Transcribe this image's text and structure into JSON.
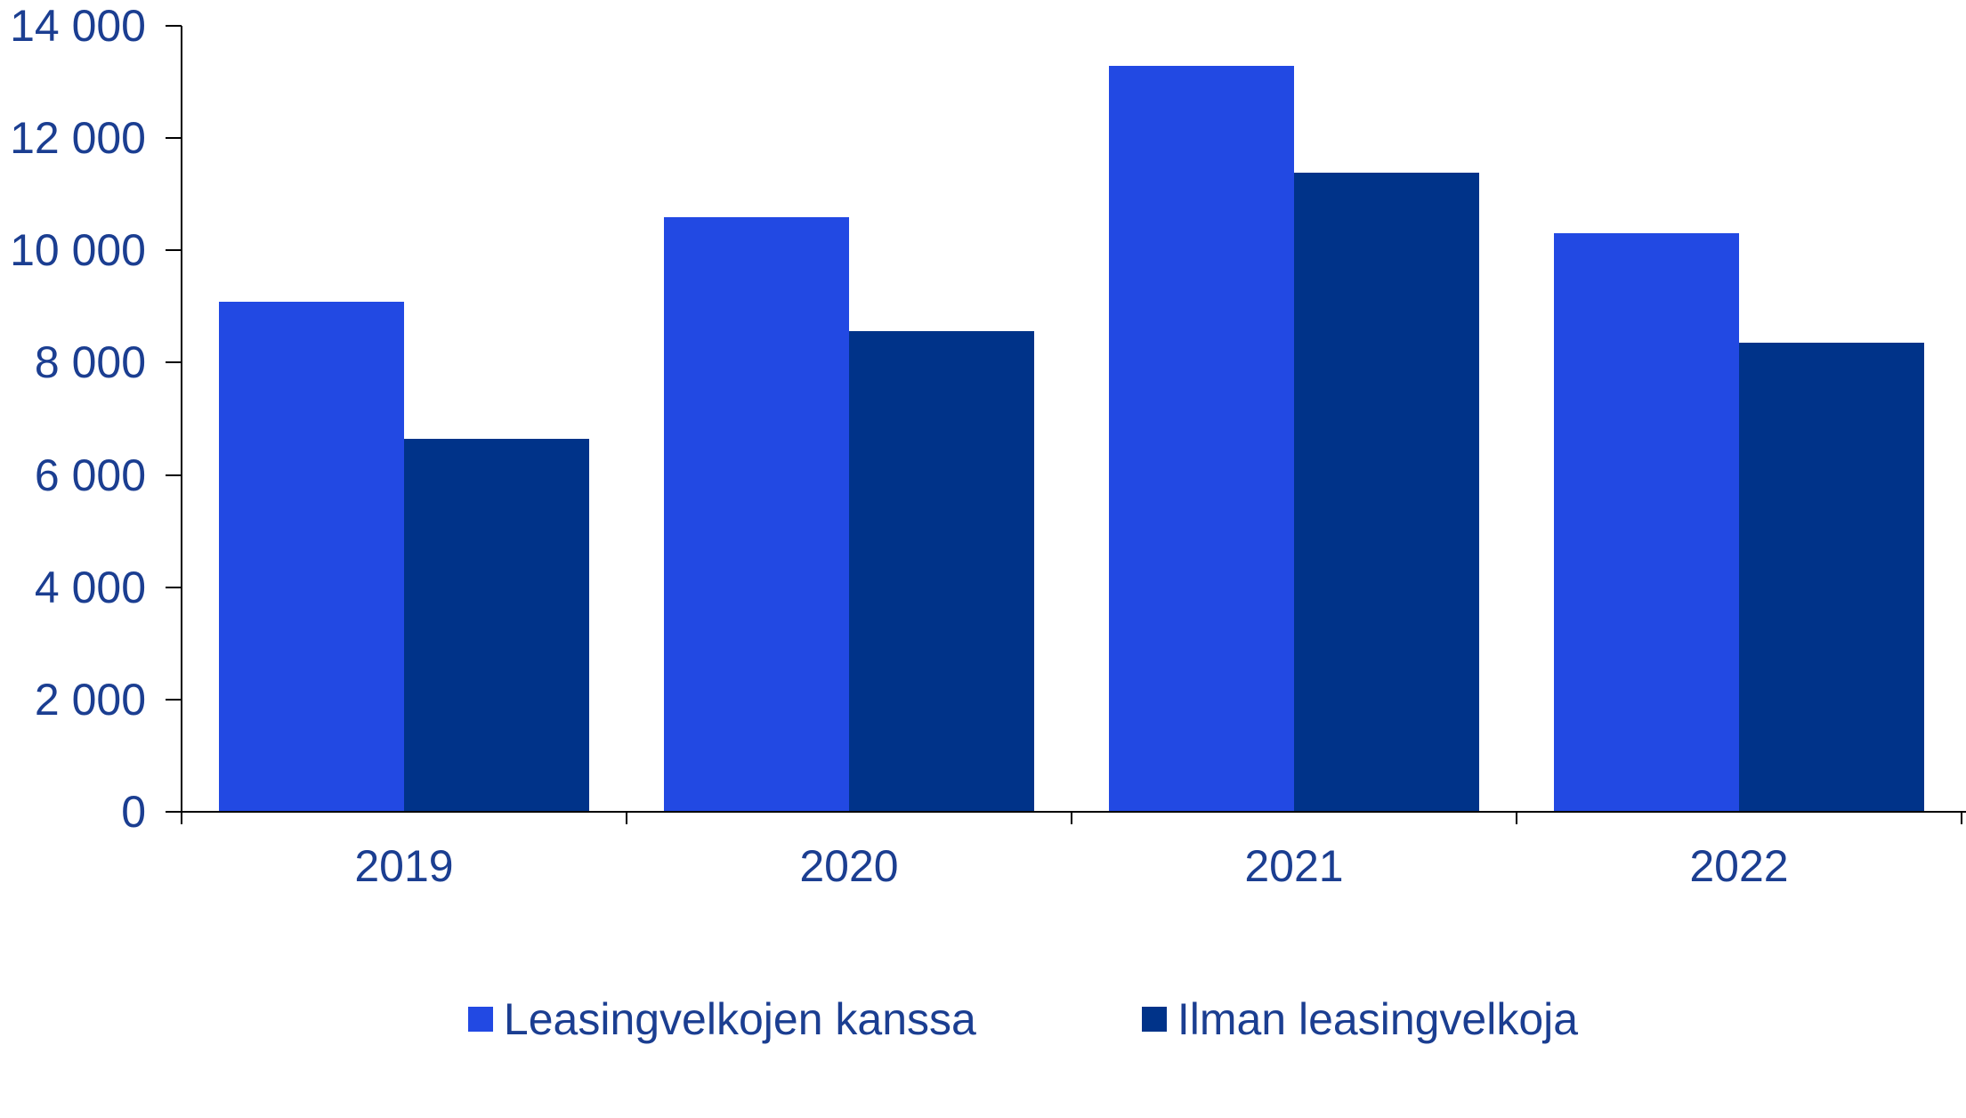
{
  "chart_data": {
    "type": "bar",
    "title": "",
    "xlabel": "",
    "ylabel": "",
    "categories": [
      "2019",
      "2020",
      "2021",
      "2022"
    ],
    "series": [
      {
        "name": "Leasingvelkojen kanssa",
        "color": "#2249E3",
        "values": [
          9090,
          10590,
          13290,
          10300
        ]
      },
      {
        "name": "Ilman leasingvelkoja",
        "color": "#003389",
        "values": [
          6650,
          8560,
          11380,
          8360
        ]
      }
    ],
    "ylim": [
      0,
      14000
    ],
    "yticks": [
      {
        "value": 0,
        "label": "0"
      },
      {
        "value": 2000,
        "label": "2 000"
      },
      {
        "value": 4000,
        "label": "4 000"
      },
      {
        "value": 6000,
        "label": "6 000"
      },
      {
        "value": 8000,
        "label": "8 000"
      },
      {
        "value": 10000,
        "label": "10 000"
      },
      {
        "value": 12000,
        "label": "12 000"
      },
      {
        "value": 14000,
        "label": "14 000"
      }
    ],
    "grid": false,
    "legend_position": "bottom",
    "axis_color": "#000000",
    "label_color": "#1B3E91"
  }
}
